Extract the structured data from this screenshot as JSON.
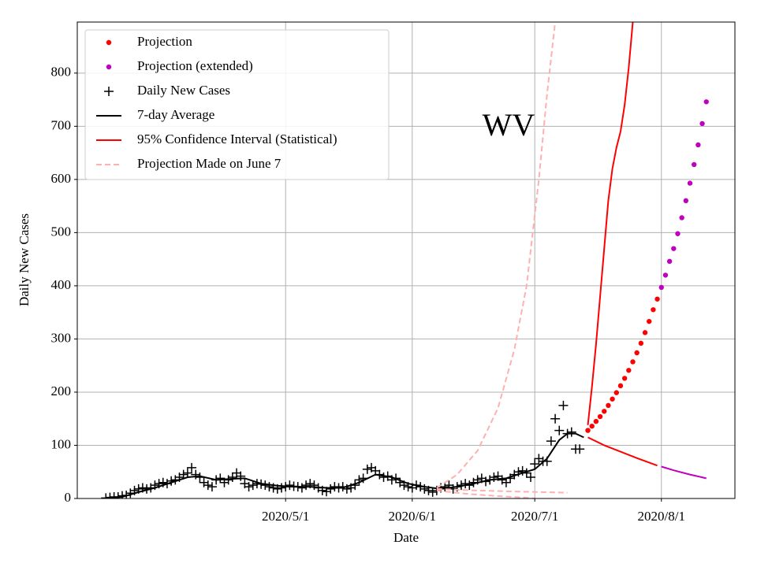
{
  "chart_data": {
    "type": "scatter",
    "annotation": "WV",
    "x_label": "Date",
    "y_label": "Daily New Cases",
    "xlim": [
      "2020-03-11",
      "2020-08-19"
    ],
    "ylim": [
      0,
      896
    ],
    "yticks": [
      0,
      100,
      200,
      300,
      400,
      500,
      600,
      700,
      800
    ],
    "xticks": [
      {
        "value": "2020-05-01",
        "label": "2020/5/1"
      },
      {
        "value": "2020-06-01",
        "label": "2020/6/1"
      },
      {
        "value": "2020-07-01",
        "label": "2020/7/1"
      },
      {
        "value": "2020-08-01",
        "label": "2020/8/1"
      }
    ],
    "grid": true,
    "legend": "upper left",
    "series": [
      {
        "name": "Projection",
        "color": "#ff0000",
        "kind": "marker",
        "marker": "o",
        "x": [
          "2020-07-14",
          "2020-07-15",
          "2020-07-16",
          "2020-07-17",
          "2020-07-18",
          "2020-07-19",
          "2020-07-20",
          "2020-07-21",
          "2020-07-22",
          "2020-07-23",
          "2020-07-24",
          "2020-07-25",
          "2020-07-26",
          "2020-07-27",
          "2020-07-28",
          "2020-07-29",
          "2020-07-30",
          "2020-07-31"
        ],
        "values": [
          128,
          136,
          145,
          154,
          164,
          175,
          187,
          199,
          212,
          226,
          241,
          257,
          274,
          292,
          312,
          333,
          355,
          375
        ]
      },
      {
        "name": "Projection (extended)",
        "color": "#bf00bf",
        "kind": "marker",
        "marker": "o",
        "x": [
          "2020-08-01",
          "2020-08-02",
          "2020-08-03",
          "2020-08-04",
          "2020-08-05",
          "2020-08-06",
          "2020-08-07",
          "2020-08-08",
          "2020-08-09",
          "2020-08-10",
          "2020-08-11",
          "2020-08-12"
        ],
        "values": [
          397,
          420,
          446,
          470,
          498,
          528,
          560,
          593,
          628,
          665,
          705,
          746
        ]
      },
      {
        "name": "Daily New Cases",
        "color": "#000000",
        "kind": "marker",
        "marker": "+",
        "x": [
          "2020-03-18",
          "2020-03-19",
          "2020-03-20",
          "2020-03-21",
          "2020-03-22",
          "2020-03-23",
          "2020-03-24",
          "2020-03-25",
          "2020-03-26",
          "2020-03-27",
          "2020-03-28",
          "2020-03-29",
          "2020-03-30",
          "2020-03-31",
          "2020-04-01",
          "2020-04-02",
          "2020-04-03",
          "2020-04-04",
          "2020-04-05",
          "2020-04-06",
          "2020-04-07",
          "2020-04-08",
          "2020-04-09",
          "2020-04-10",
          "2020-04-11",
          "2020-04-12",
          "2020-04-13",
          "2020-04-14",
          "2020-04-15",
          "2020-04-16",
          "2020-04-17",
          "2020-04-18",
          "2020-04-19",
          "2020-04-20",
          "2020-04-21",
          "2020-04-22",
          "2020-04-23",
          "2020-04-24",
          "2020-04-25",
          "2020-04-26",
          "2020-04-27",
          "2020-04-28",
          "2020-04-29",
          "2020-04-30",
          "2020-05-01",
          "2020-05-02",
          "2020-05-03",
          "2020-05-04",
          "2020-05-05",
          "2020-05-06",
          "2020-05-07",
          "2020-05-08",
          "2020-05-09",
          "2020-05-10",
          "2020-05-11",
          "2020-05-12",
          "2020-05-13",
          "2020-05-14",
          "2020-05-15",
          "2020-05-16",
          "2020-05-17",
          "2020-05-18",
          "2020-05-19",
          "2020-05-20",
          "2020-05-21",
          "2020-05-22",
          "2020-05-23",
          "2020-05-24",
          "2020-05-25",
          "2020-05-26",
          "2020-05-27",
          "2020-05-28",
          "2020-05-29",
          "2020-05-30",
          "2020-05-31",
          "2020-06-01",
          "2020-06-02",
          "2020-06-03",
          "2020-06-04",
          "2020-06-05",
          "2020-06-06",
          "2020-06-07",
          "2020-06-08",
          "2020-06-09",
          "2020-06-10",
          "2020-06-11",
          "2020-06-12",
          "2020-06-13",
          "2020-06-14",
          "2020-06-15",
          "2020-06-16",
          "2020-06-17",
          "2020-06-18",
          "2020-06-19",
          "2020-06-20",
          "2020-06-21",
          "2020-06-22",
          "2020-06-23",
          "2020-06-24",
          "2020-06-25",
          "2020-06-26",
          "2020-06-27",
          "2020-06-28",
          "2020-06-29",
          "2020-06-30",
          "2020-07-01",
          "2020-07-02",
          "2020-07-03",
          "2020-07-04",
          "2020-07-05",
          "2020-07-06",
          "2020-07-07",
          "2020-07-08",
          "2020-07-09",
          "2020-07-10",
          "2020-07-11",
          "2020-07-12"
        ],
        "values": [
          1,
          2,
          3,
          3,
          5,
          6,
          10,
          15,
          18,
          20,
          18,
          20,
          25,
          28,
          30,
          28,
          33,
          35,
          40,
          45,
          48,
          58,
          45,
          40,
          30,
          25,
          22,
          35,
          38,
          30,
          35,
          40,
          48,
          42,
          28,
          22,
          25,
          28,
          27,
          25,
          22,
          20,
          18,
          20,
          22,
          25,
          23,
          22,
          20,
          25,
          28,
          25,
          20,
          15,
          13,
          18,
          22,
          20,
          22,
          18,
          20,
          25,
          35,
          38,
          55,
          58,
          52,
          45,
          40,
          42,
          35,
          38,
          30,
          25,
          22,
          20,
          25,
          22,
          18,
          15,
          12,
          15,
          20,
          22,
          25,
          18,
          22,
          25,
          28,
          25,
          30,
          35,
          38,
          32,
          35,
          40,
          42,
          35,
          30,
          38,
          45,
          50,
          52,
          48,
          40,
          65,
          75,
          70,
          70,
          108,
          150,
          128,
          175,
          122,
          125,
          93,
          93
        ]
      },
      {
        "name": "7-day Average",
        "color": "#000000",
        "kind": "line",
        "dash": false,
        "x": [
          "2020-03-18",
          "2020-03-22",
          "2020-03-26",
          "2020-03-30",
          "2020-04-03",
          "2020-04-07",
          "2020-04-10",
          "2020-04-14",
          "2020-04-18",
          "2020-04-21",
          "2020-04-25",
          "2020-04-29",
          "2020-05-03",
          "2020-05-07",
          "2020-05-11",
          "2020-05-15",
          "2020-05-19",
          "2020-05-23",
          "2020-05-27",
          "2020-05-31",
          "2020-06-04",
          "2020-06-08",
          "2020-06-12",
          "2020-06-16",
          "2020-06-20",
          "2020-06-24",
          "2020-06-28",
          "2020-07-01",
          "2020-07-04",
          "2020-07-07",
          "2020-07-09",
          "2020-07-11",
          "2020-07-13"
        ],
        "values": [
          0,
          3,
          12,
          20,
          30,
          40,
          42,
          35,
          37,
          38,
          28,
          24,
          22,
          22,
          20,
          20,
          30,
          45,
          40,
          28,
          22,
          18,
          22,
          28,
          35,
          38,
          48,
          55,
          75,
          110,
          122,
          122,
          115
        ]
      },
      {
        "name": "95% Confidence Interval (Statistical)",
        "color": "#ff0000",
        "kind": "line",
        "dash": false,
        "x": [
          "2020-07-14",
          "2020-07-15",
          "2020-07-16",
          "2020-07-17",
          "2020-07-18",
          "2020-07-19",
          "2020-07-20",
          "2020-07-21",
          "2020-07-22",
          "2020-07-23",
          "2020-07-24",
          "2020-07-25"
        ],
        "values": [
          138,
          210,
          290,
          380,
          470,
          560,
          620,
          660,
          690,
          740,
          810,
          896
        ]
      },
      {
        "color": "#ff0000",
        "kind": "line",
        "dash": false,
        "x": [
          "2020-07-14",
          "2020-07-18",
          "2020-07-22",
          "2020-07-26",
          "2020-07-31"
        ],
        "values": [
          115,
          100,
          88,
          76,
          62
        ]
      },
      {
        "color": "#bf00bf",
        "kind": "line",
        "dash": false,
        "x": [
          "2020-08-01",
          "2020-08-04",
          "2020-08-08",
          "2020-08-12"
        ],
        "values": [
          60,
          53,
          45,
          38
        ]
      },
      {
        "name": "Projection Made on June 7",
        "color": "#ffb0b0",
        "kind": "line",
        "dash": true,
        "x": [
          "2020-06-07",
          "2020-06-12",
          "2020-06-17",
          "2020-06-22",
          "2020-06-26",
          "2020-06-29",
          "2020-07-02",
          "2020-07-04",
          "2020-07-06"
        ],
        "values": [
          20,
          45,
          90,
          170,
          280,
          400,
          600,
          760,
          896
        ]
      },
      {
        "color": "#ffb0b0",
        "kind": "line",
        "dash": true,
        "x": [
          "2020-06-07",
          "2020-06-17",
          "2020-06-27",
          "2020-07-09"
        ],
        "values": [
          18,
          15,
          13,
          11
        ]
      },
      {
        "color": "#ffb0b0",
        "kind": "line",
        "dash": true,
        "x": [
          "2020-06-07",
          "2020-06-14",
          "2020-06-21",
          "2020-06-28",
          "2020-07-01"
        ],
        "values": [
          15,
          9,
          5,
          2,
          0
        ]
      }
    ]
  }
}
